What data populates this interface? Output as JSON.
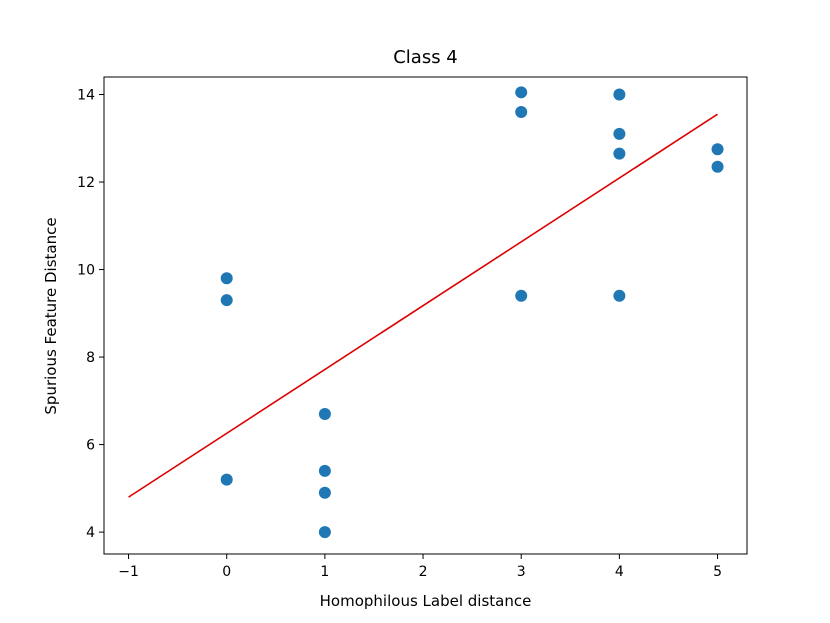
{
  "chart_data": {
    "type": "scatter",
    "title": "Class 4",
    "xlabel": "Homophilous Label distance",
    "ylabel": "Spurious Feature Distance",
    "xlim": [
      -1.25,
      5.3
    ],
    "ylim": [
      3.5,
      14.4
    ],
    "xticks": [
      -1,
      0,
      1,
      2,
      3,
      4,
      5
    ],
    "yticks": [
      4,
      6,
      8,
      10,
      12,
      14
    ],
    "grid": false,
    "points": [
      {
        "x": 0,
        "y": 9.8
      },
      {
        "x": 0,
        "y": 9.3
      },
      {
        "x": 0,
        "y": 5.2
      },
      {
        "x": 1,
        "y": 6.7
      },
      {
        "x": 1,
        "y": 5.4
      },
      {
        "x": 1,
        "y": 4.9
      },
      {
        "x": 1,
        "y": 4.0
      },
      {
        "x": 3,
        "y": 14.05
      },
      {
        "x": 3,
        "y": 13.6
      },
      {
        "x": 3,
        "y": 9.4
      },
      {
        "x": 4,
        "y": 14.0
      },
      {
        "x": 4,
        "y": 13.1
      },
      {
        "x": 4,
        "y": 12.65
      },
      {
        "x": 4,
        "y": 9.4
      },
      {
        "x": 5,
        "y": 12.75
      },
      {
        "x": 5,
        "y": 12.35
      }
    ],
    "fit_line": {
      "x": [
        -1,
        5
      ],
      "y": [
        4.8,
        13.55
      ]
    },
    "colors": {
      "points": "#1f77b4",
      "fit_line": "#dd0000"
    }
  }
}
